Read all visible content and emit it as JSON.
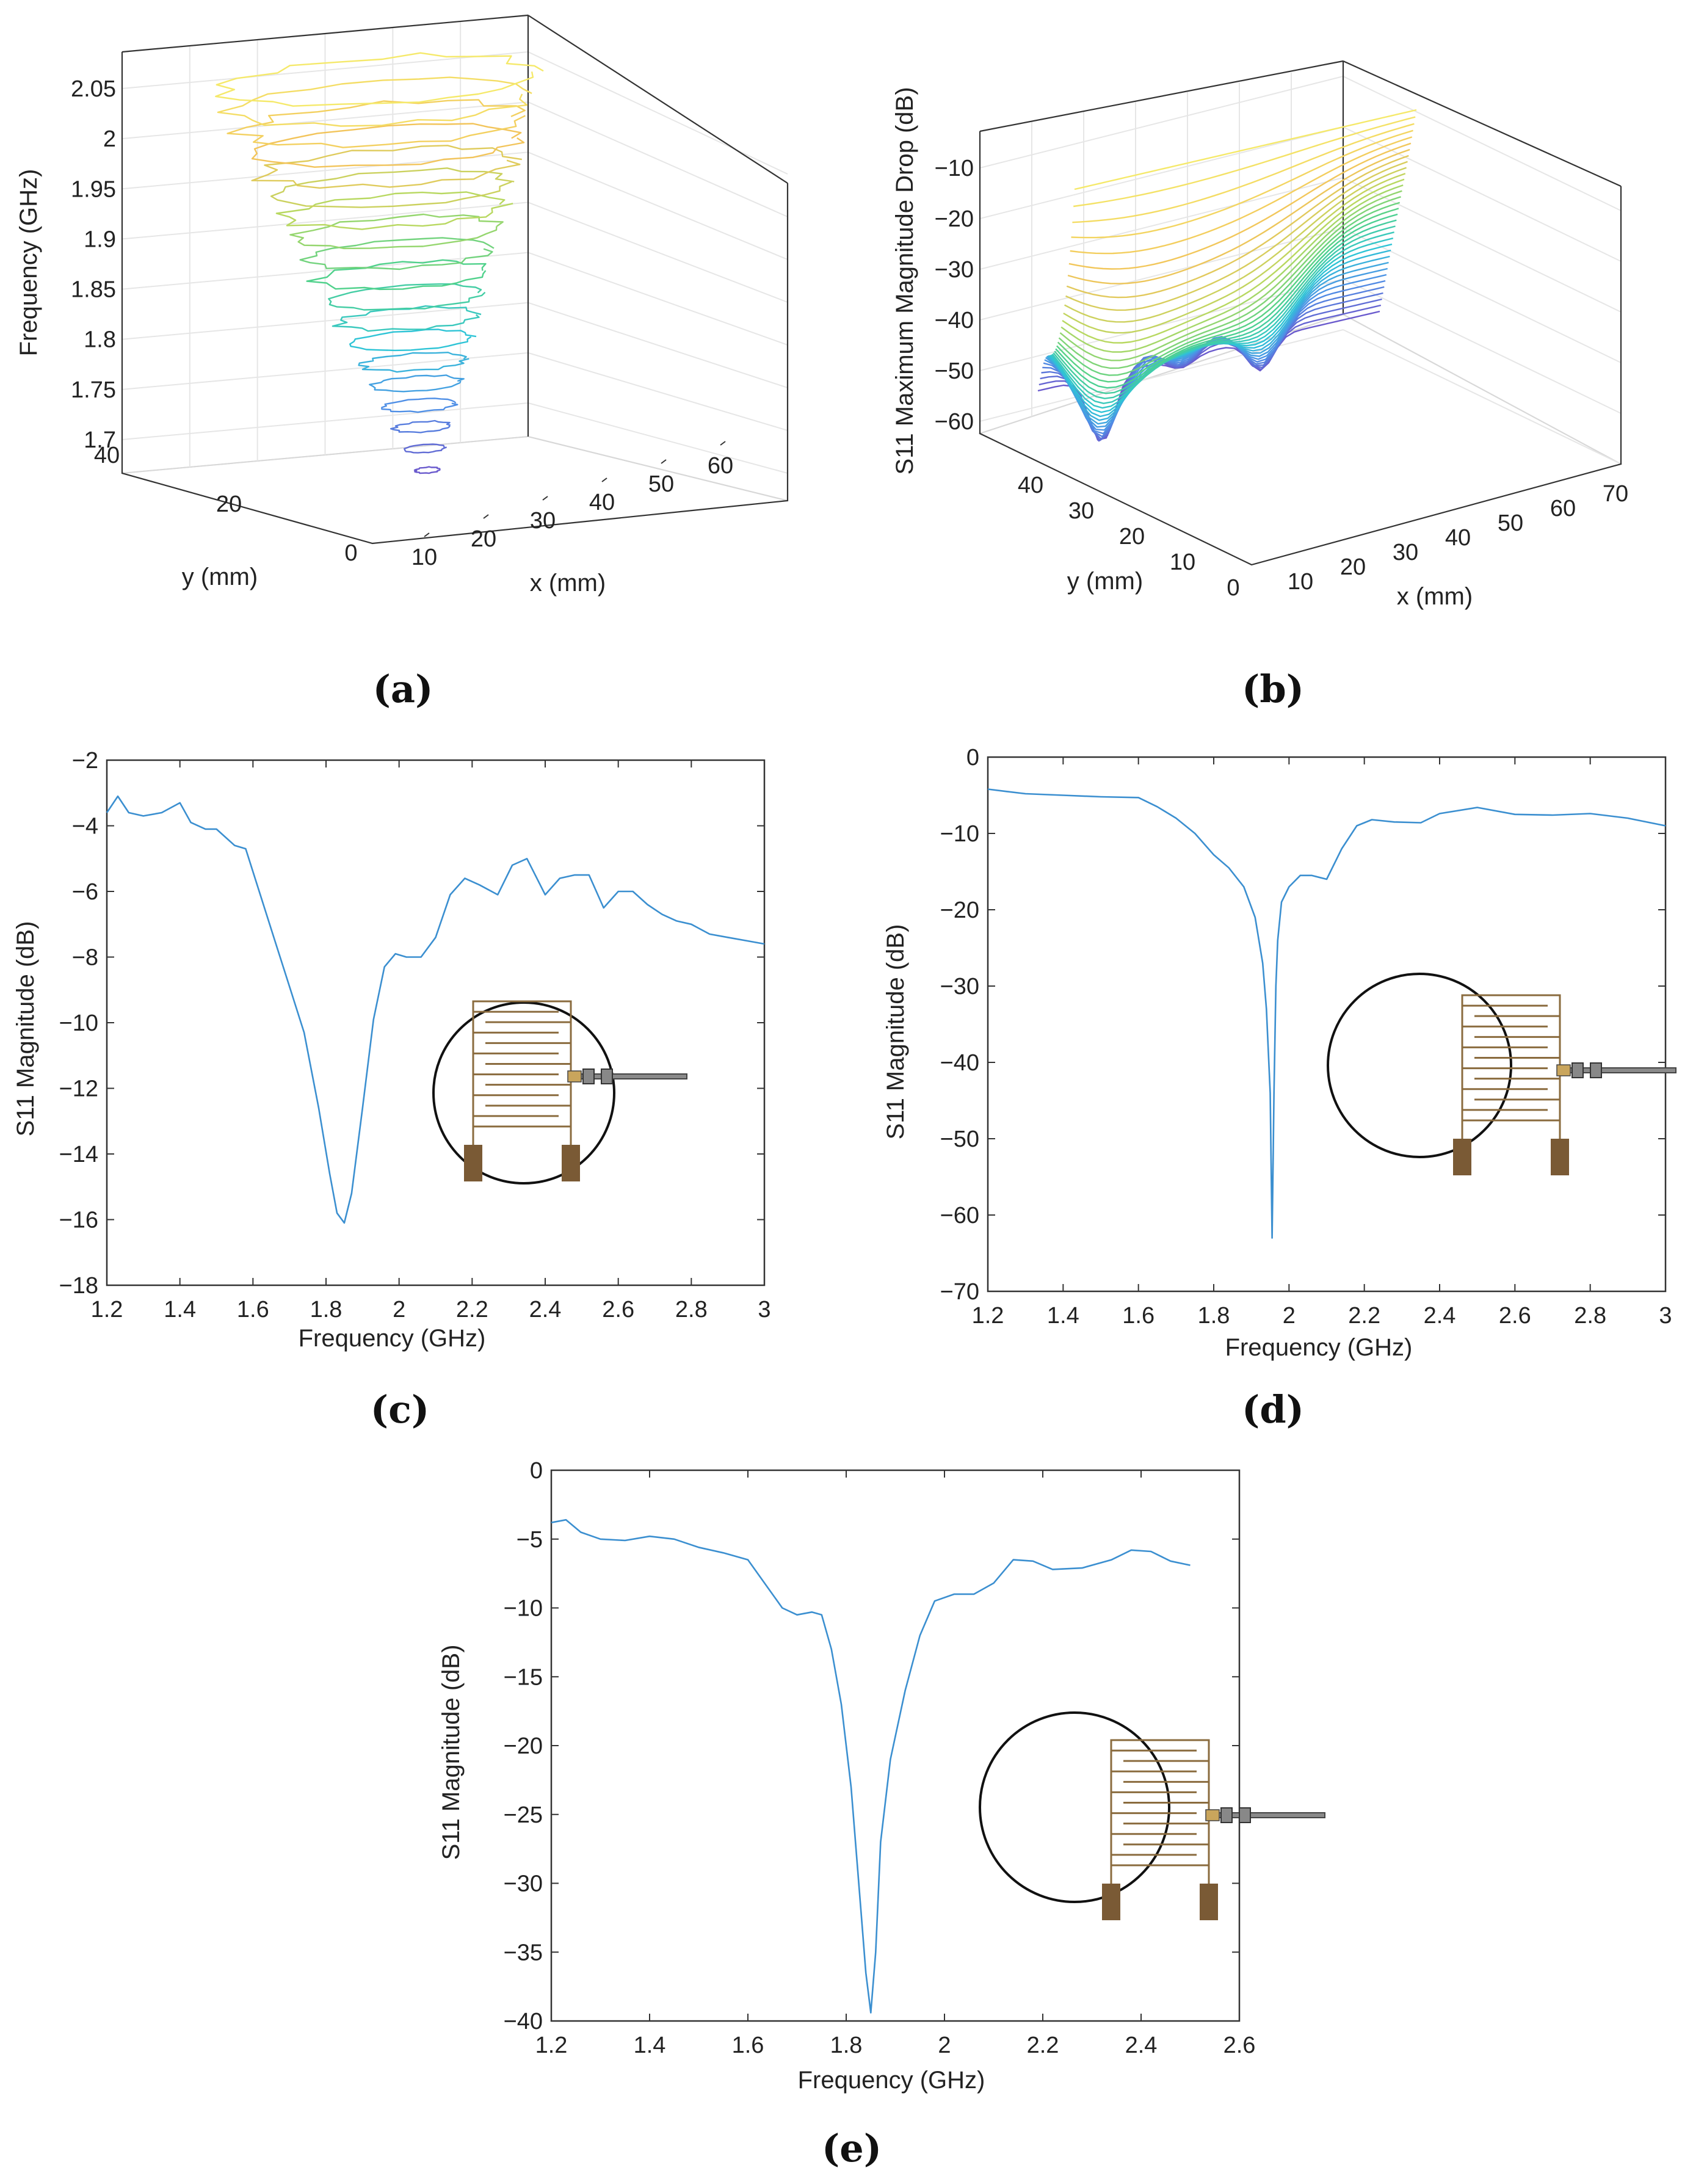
{
  "chart_data": [
    {
      "id": "a",
      "type": "surface3d-contour",
      "caption": "(a)",
      "zlabel": "Frequency (GHz)",
      "xlabel": "x (mm)",
      "ylabel": "y (mm)",
      "zticks": [
        "1.7",
        "1.75",
        "1.8",
        "1.85",
        "1.9",
        "1.95",
        "2",
        "2.05"
      ],
      "xticks": [
        "10",
        "20",
        "30",
        "40",
        "50",
        "60"
      ],
      "yticks": [
        "0",
        "20",
        "40"
      ],
      "zlim": [
        1.66,
        2.08
      ],
      "levels": [
        1.69,
        1.71,
        1.73,
        1.75,
        1.77,
        1.79,
        1.81,
        1.83,
        1.85,
        1.87,
        1.89,
        1.91,
        1.93,
        1.95,
        1.97,
        1.99,
        2.01,
        2.03,
        2.05
      ],
      "colormap": [
        "#6a5acd",
        "#4f8fe6",
        "#2ec4d6",
        "#4fd18b",
        "#b8d860",
        "#f2c45a",
        "#f5e96a"
      ]
    },
    {
      "id": "b",
      "type": "surface3d-contour",
      "caption": "(b)",
      "zlabel": "S11 Maximum Magnitude Drop (dB)",
      "xlabel": "x (mm)",
      "ylabel": "y (mm)",
      "zticks": [
        "−60",
        "−50",
        "−40",
        "−30",
        "−20",
        "−10"
      ],
      "xticks": [
        "10",
        "20",
        "30",
        "40",
        "50",
        "60",
        "70"
      ],
      "yticks": [
        "0",
        "10",
        "20",
        "30",
        "40"
      ],
      "zlim": [
        -65,
        -5
      ],
      "minima_db": [
        -62,
        -52,
        -52
      ],
      "colormap": [
        "#6a5acd",
        "#4f8fe6",
        "#2ec4d6",
        "#4fd18b",
        "#b8d860",
        "#f2c45a",
        "#f5e96a"
      ]
    },
    {
      "id": "c",
      "type": "line",
      "caption": "(c)",
      "xlabel": "Frequency (GHz)",
      "ylabel": "S11 Magnitude (dB)",
      "xlim": [
        1.2,
        3.0
      ],
      "ylim": [
        -18,
        -2
      ],
      "xticks": [
        "1.2",
        "1.4",
        "1.6",
        "1.8",
        "2",
        "2.2",
        "2.4",
        "2.6",
        "2.8",
        "3"
      ],
      "yticks": [
        "−18",
        "−16",
        "−14",
        "−12",
        "−10",
        "−8",
        "−6",
        "−4",
        "−2"
      ],
      "x": [
        1.2,
        1.23,
        1.26,
        1.3,
        1.35,
        1.4,
        1.43,
        1.47,
        1.5,
        1.55,
        1.58,
        1.62,
        1.66,
        1.7,
        1.74,
        1.78,
        1.81,
        1.83,
        1.85,
        1.87,
        1.9,
        1.93,
        1.96,
        1.99,
        2.02,
        2.06,
        2.1,
        2.14,
        2.18,
        2.22,
        2.27,
        2.31,
        2.35,
        2.4,
        2.44,
        2.48,
        2.52,
        2.56,
        2.6,
        2.64,
        2.68,
        2.72,
        2.76,
        2.8,
        2.85,
        2.9,
        2.95,
        3.0
      ],
      "y": [
        -3.6,
        -3.1,
        -3.6,
        -3.7,
        -3.6,
        -3.3,
        -3.9,
        -4.1,
        -4.1,
        -4.6,
        -4.7,
        -6.1,
        -7.5,
        -8.9,
        -10.3,
        -12.6,
        -14.6,
        -15.8,
        -16.1,
        -15.2,
        -12.6,
        -9.9,
        -8.3,
        -7.9,
        -8.0,
        -8.0,
        -7.4,
        -6.1,
        -5.6,
        -5.8,
        -6.1,
        -5.2,
        -5.0,
        -6.1,
        -5.6,
        -5.5,
        -5.5,
        -6.5,
        -6.0,
        -6.0,
        -6.4,
        -6.7,
        -6.9,
        -7.0,
        -7.3,
        -7.4,
        -7.5,
        -7.6
      ]
    },
    {
      "id": "d",
      "type": "line",
      "caption": "(d)",
      "xlabel": "Frequency (GHz)",
      "ylabel": "S11 Magnitude (dB)",
      "xlim": [
        1.2,
        3.0
      ],
      "ylim": [
        -70,
        0
      ],
      "xticks": [
        "1.2",
        "1.4",
        "1.6",
        "1.8",
        "2",
        "2.2",
        "2.4",
        "2.6",
        "2.8",
        "3"
      ],
      "yticks": [
        "−70",
        "−60",
        "−50",
        "−40",
        "−30",
        "−20",
        "−10",
        "0"
      ],
      "x": [
        1.2,
        1.25,
        1.3,
        1.4,
        1.5,
        1.6,
        1.65,
        1.7,
        1.75,
        1.8,
        1.84,
        1.88,
        1.91,
        1.93,
        1.94,
        1.95,
        1.955,
        1.96,
        1.965,
        1.97,
        1.98,
        2.0,
        2.03,
        2.06,
        2.1,
        2.14,
        2.18,
        2.22,
        2.28,
        2.35,
        2.4,
        2.5,
        2.6,
        2.7,
        2.8,
        2.9,
        3.0
      ],
      "y": [
        -4.2,
        -4.5,
        -4.8,
        -5.0,
        -5.2,
        -5.3,
        -6.5,
        -8.0,
        -10.0,
        -12.8,
        -14.5,
        -17.0,
        -21.0,
        -27.0,
        -33.0,
        -44.0,
        -63.0,
        -44.0,
        -30.0,
        -24.0,
        -19.0,
        -17.0,
        -15.5,
        -15.5,
        -16.0,
        -12.0,
        -9.0,
        -8.2,
        -8.5,
        -8.6,
        -7.4,
        -6.6,
        -7.5,
        -7.6,
        -7.4,
        -8.0,
        -9.0
      ]
    },
    {
      "id": "e",
      "type": "line",
      "caption": "(e)",
      "xlabel": "Frequency (GHz)",
      "ylabel": "S11 Magnitude (dB)",
      "xlim": [
        1.2,
        2.6
      ],
      "ylim": [
        -40,
        0
      ],
      "xticks": [
        "1.2",
        "1.4",
        "1.6",
        "1.8",
        "2",
        "2.2",
        "2.4",
        "2.6"
      ],
      "yticks": [
        "−40",
        "−35",
        "−30",
        "−25",
        "−20",
        "−15",
        "−10",
        "−5",
        "0"
      ],
      "x": [
        1.2,
        1.23,
        1.26,
        1.3,
        1.35,
        1.4,
        1.45,
        1.5,
        1.55,
        1.6,
        1.64,
        1.67,
        1.7,
        1.73,
        1.75,
        1.77,
        1.79,
        1.81,
        1.83,
        1.84,
        1.85,
        1.86,
        1.87,
        1.89,
        1.92,
        1.95,
        1.98,
        2.02,
        2.06,
        2.1,
        2.14,
        2.18,
        2.22,
        2.28,
        2.34,
        2.38,
        2.42,
        2.46,
        2.5
      ],
      "y": [
        -3.8,
        -3.6,
        -4.5,
        -5.0,
        -5.1,
        -4.8,
        -5.0,
        -5.6,
        -6.0,
        -6.5,
        -8.5,
        -10.0,
        -10.5,
        -10.3,
        -10.5,
        -13.0,
        -17.0,
        -23.0,
        -32.0,
        -36.5,
        -39.4,
        -35.0,
        -27.0,
        -21.0,
        -16.0,
        -12.0,
        -9.5,
        -9.0,
        -9.0,
        -8.2,
        -6.5,
        -6.6,
        -7.2,
        -7.1,
        -6.5,
        -5.8,
        -5.9,
        -6.6,
        -6.9
      ]
    }
  ]
}
